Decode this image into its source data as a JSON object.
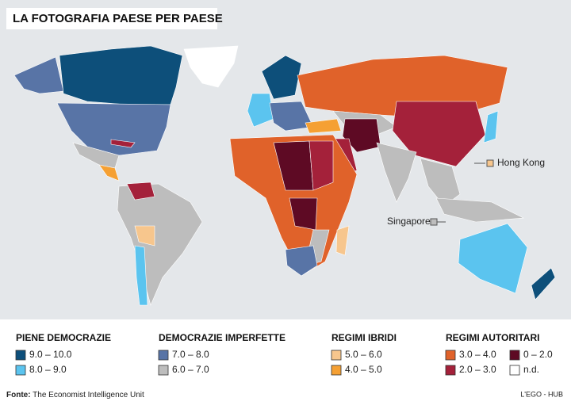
{
  "title": "LA FOTOGRAFIA PAESE PER PAESE",
  "map_labels": [
    "Hong Kong",
    "Singapore"
  ],
  "legend": [
    {
      "heading": "PIENE DEMOCRAZIE",
      "items": [
        {
          "label": "9.0 – 10.0",
          "color": "#0d4f7a"
        },
        {
          "label": "8.0 – 9.0",
          "color": "#5bc4ef"
        }
      ]
    },
    {
      "heading": "DEMOCRAZIE IMPERFETTE",
      "items": [
        {
          "label": "7.0 – 8.0",
          "color": "#5874a6"
        },
        {
          "label": "6.0 – 7.0",
          "color": "#bdbdbd"
        }
      ]
    },
    {
      "heading": "REGIMI IBRIDI",
      "items": [
        {
          "label": "5.0 – 6.0",
          "color": "#f7c68d"
        },
        {
          "label": "4.0 – 5.0",
          "color": "#f5a033"
        }
      ]
    },
    {
      "heading": "REGIMI AUTORITARI",
      "items": [
        {
          "label": "3.0 – 4.0",
          "color": "#e0622a"
        },
        {
          "label": "0 – 2.0",
          "color": "#5e0a24"
        },
        {
          "label": "2.0 – 3.0",
          "color": "#a4213a"
        },
        {
          "label": "n.d.",
          "color": "#ffffff"
        }
      ]
    }
  ],
  "source": {
    "label": "Fonte:",
    "text": "The Economist Intelligence Unit"
  },
  "brand": "L'EGO - HUB"
}
